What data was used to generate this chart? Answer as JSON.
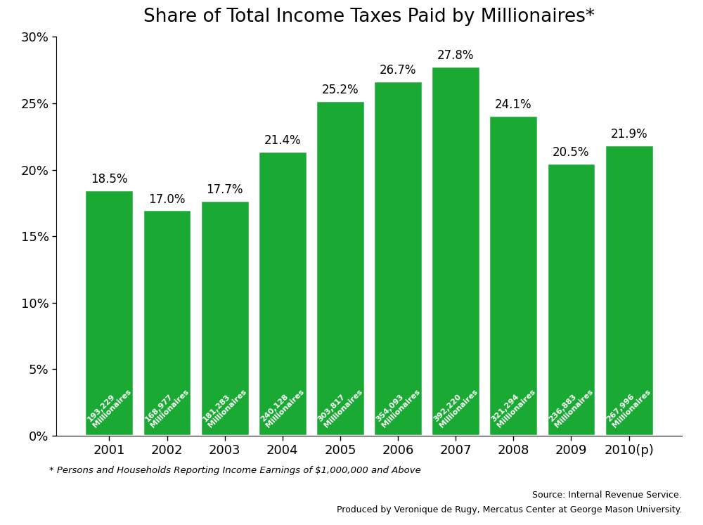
{
  "title": "Share of Total Income Taxes Paid by Millionaires*",
  "years": [
    "2001",
    "2002",
    "2003",
    "2004",
    "2005",
    "2006",
    "2007",
    "2008",
    "2009",
    "2010(p)"
  ],
  "values": [
    18.5,
    17.0,
    17.7,
    21.4,
    25.2,
    26.7,
    27.8,
    24.1,
    20.5,
    21.9
  ],
  "millionaires": [
    "193,229",
    "168,977",
    "181,283",
    "240,128",
    "303,817",
    "354,093",
    "392,220",
    "321,294",
    "236,883",
    "267,996"
  ],
  "bar_color": "#1aaa34",
  "bar_edge_color": "white",
  "title_fontsize": 19,
  "label_fontsize": 12,
  "tick_fontsize": 13,
  "footnote": "* Persons and Households Reporting Income Earnings of $1,000,000 and Above",
  "source_line1": "Source: Internal Revenue Service.",
  "source_line2": "Produced by Veronique de Rugy, Mercatus Center at George Mason University.",
  "ylim": [
    0,
    30
  ],
  "yticks": [
    0,
    5,
    10,
    15,
    20,
    25,
    30
  ],
  "background_color": "#ffffff"
}
